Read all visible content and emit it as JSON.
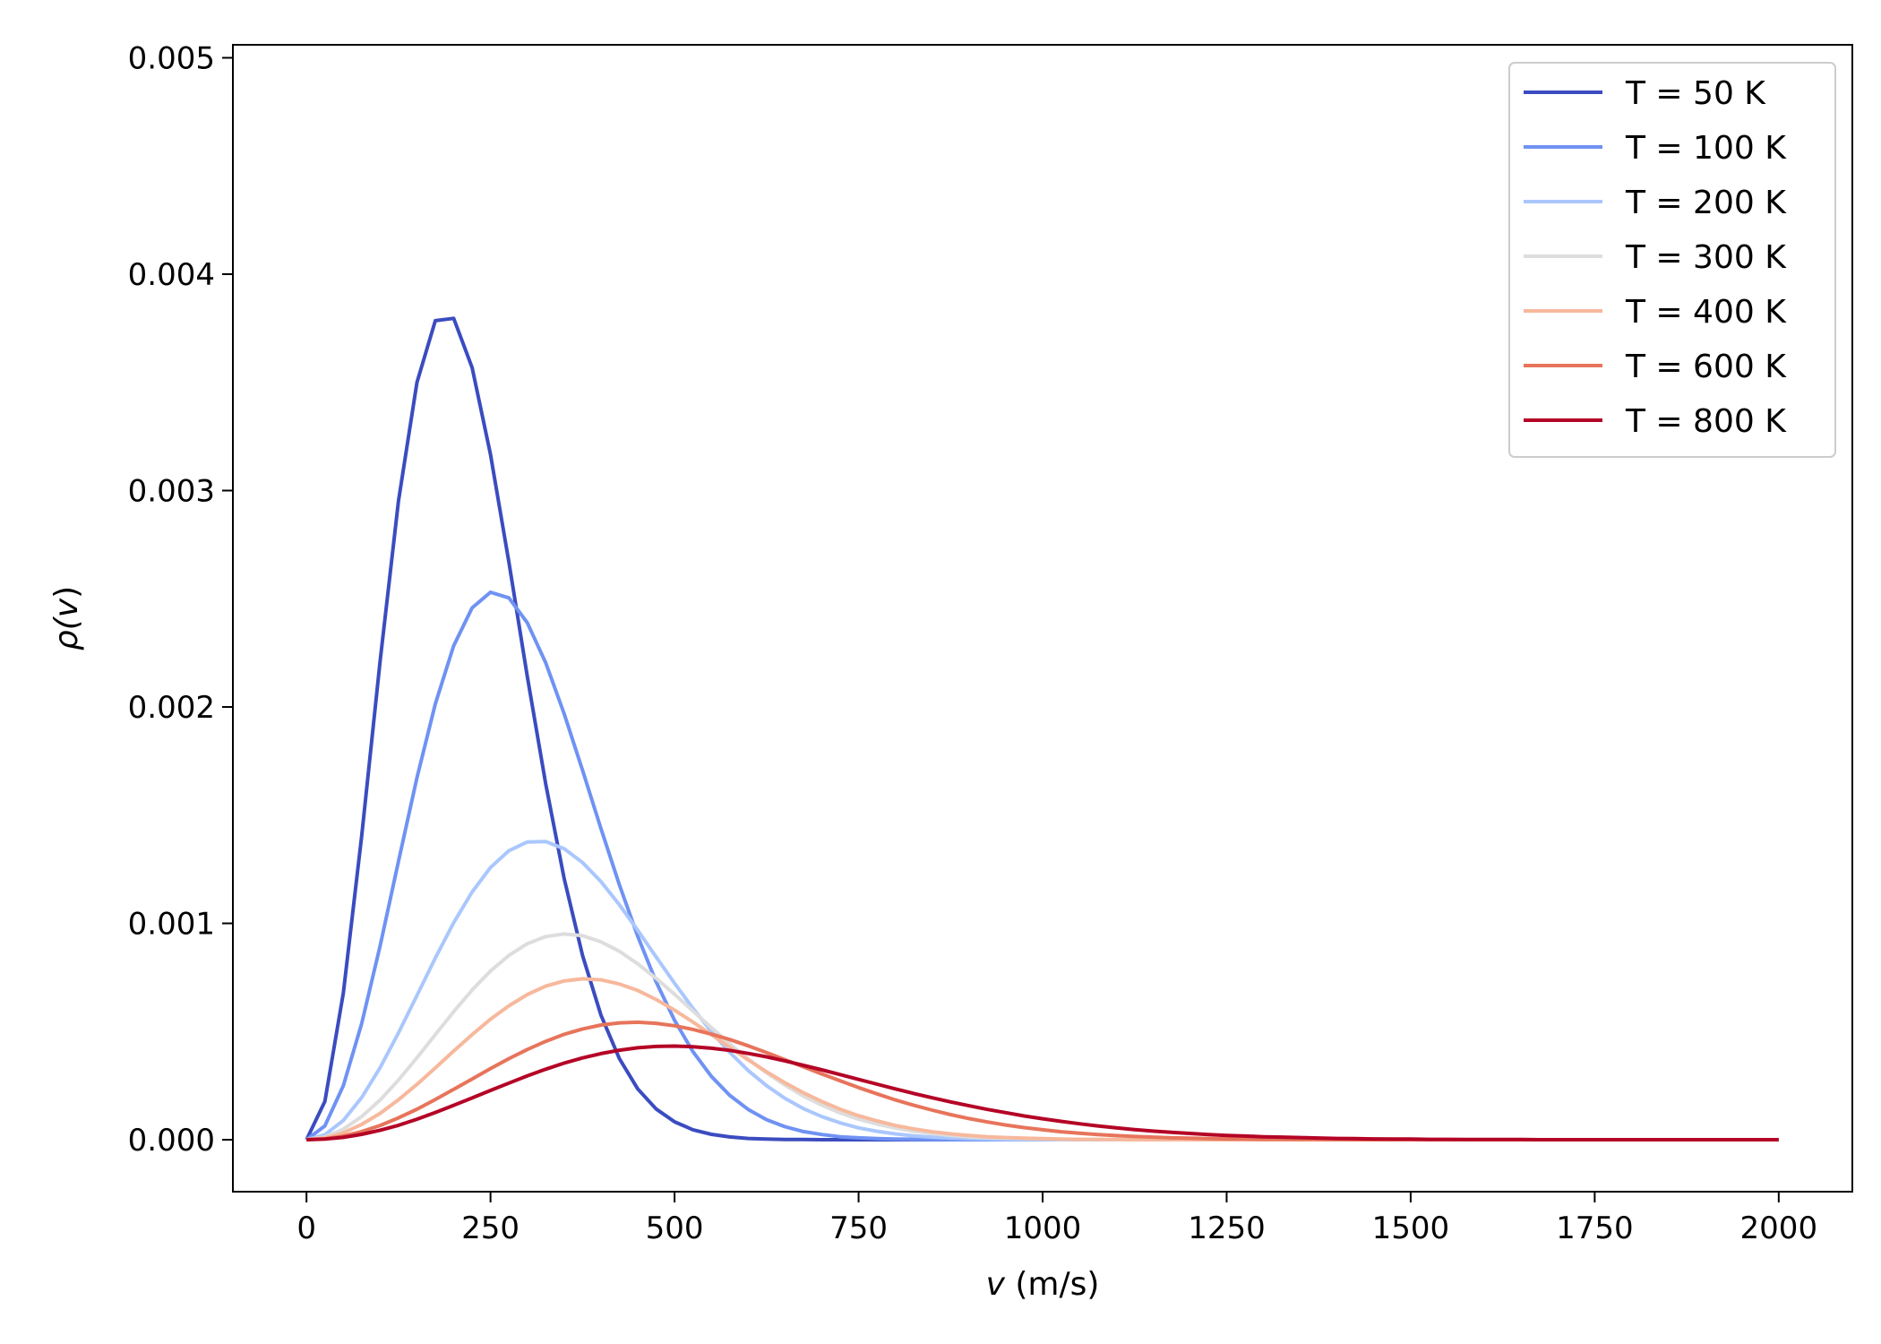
{
  "chart_data": {
    "type": "line",
    "title": "",
    "xlabel_var": "v",
    "xlabel_unit": " (m/s)",
    "ylabel_var": "ρ(",
    "ylabel_arg": "v",
    "ylabel_close": ")",
    "xlim": [
      -100,
      2100
    ],
    "ylim": [
      -0.00024,
      0.00506
    ],
    "x_ticks": [
      0,
      250,
      500,
      750,
      1000,
      1250,
      1500,
      1750,
      2000
    ],
    "x_tick_labels": [
      "0",
      "250",
      "500",
      "750",
      "1000",
      "1250",
      "1500",
      "1750",
      "2000"
    ],
    "y_ticks": [
      0,
      0.001,
      0.002,
      0.003,
      0.004,
      0.005
    ],
    "y_tick_labels": [
      "0.000",
      "0.001",
      "0.002",
      "0.003",
      "0.004",
      "0.005"
    ],
    "grid": false,
    "legend_position": "top-right",
    "x": [
      0,
      25,
      50,
      75,
      100,
      125,
      150,
      175,
      200,
      225,
      250,
      275,
      300,
      325,
      350,
      375,
      400,
      425,
      450,
      475,
      500,
      525,
      550,
      575,
      600,
      625,
      650,
      675,
      700,
      725,
      750,
      775,
      800,
      825,
      850,
      875,
      900,
      925,
      950,
      975,
      1000,
      1025,
      1050,
      1075,
      1100,
      1125,
      1150,
      1175,
      1200,
      1225,
      1250,
      1275,
      1300,
      1325,
      1350,
      1375,
      1400,
      1425,
      1450,
      1475,
      1500,
      1525,
      1550,
      1575,
      1600,
      1625,
      1650,
      1675,
      1700,
      1725,
      1750,
      1775,
      1800,
      1825,
      1850,
      1875,
      1900,
      1925,
      1950,
      1975,
      2000
    ],
    "series": [
      {
        "name": "T = 50 K",
        "color": "#3b4cc0",
        "values": [
          0,
          0.000177,
          0.000678,
          0.001404,
          0.002213,
          0.002953,
          0.0035,
          0.003785,
          0.003796,
          0.003568,
          0.003167,
          0.002668,
          0.002141,
          0.001643,
          0.001208,
          0.000851,
          0.000576,
          0.000375,
          0.000235,
          0.000142,
          8.3e-05,
          4.6e-05,
          2.5e-05,
          1.3e-05,
          6e-06,
          3e-06,
          1e-06,
          1e-06,
          0,
          0,
          0,
          0,
          0,
          0,
          0,
          0,
          0,
          0,
          0,
          0,
          0,
          0,
          0,
          0,
          0,
          0,
          0,
          0,
          0,
          0,
          0,
          0,
          0,
          0,
          0,
          0,
          0,
          0,
          0,
          0,
          0,
          0,
          0,
          0,
          0,
          0,
          0,
          0,
          0,
          0,
          0,
          0,
          0,
          0,
          0,
          0,
          0,
          0,
          0,
          0,
          0
        ]
      },
      {
        "name": "T = 100 K",
        "color": "#6f92f3",
        "values": [
          0,
          6.4e-05,
          0.00025,
          0.000537,
          0.000896,
          0.001287,
          0.001673,
          0.002014,
          0.002283,
          0.002458,
          0.00253,
          0.002504,
          0.002389,
          0.002204,
          0.001969,
          0.001707,
          0.001438,
          0.001178,
          0.00094,
          0.00073,
          0.000552,
          0.000407,
          0.000293,
          0.000205,
          0.00014,
          9.3e-05,
          6e-05,
          3.8e-05,
          2.4e-05,
          1.4e-05,
          9e-06,
          5e-06,
          3e-06,
          2e-06,
          1e-06,
          0,
          0,
          0,
          0,
          0,
          0,
          0,
          0,
          0,
          0,
          0,
          0,
          0,
          0,
          0,
          0,
          0,
          0,
          0,
          0,
          0,
          0,
          0,
          0,
          0,
          0,
          0,
          0,
          0,
          0,
          0,
          0,
          0,
          0,
          0,
          0,
          0,
          0,
          0,
          0,
          0,
          0,
          0,
          0,
          0,
          0
        ]
      },
      {
        "name": "T = 200 K",
        "color": "#aac7fd",
        "values": [
          0,
          2.3e-05,
          8.9e-05,
          0.000195,
          0.000333,
          0.000494,
          0.000667,
          0.00084,
          0.001003,
          0.001145,
          0.001258,
          0.001336,
          0.001376,
          0.001378,
          0.001345,
          0.001281,
          0.001193,
          0.001086,
          0.000968,
          0.000845,
          0.000723,
          0.000607,
          0.0005,
          0.000404,
          0.00032,
          0.00025,
          0.000191,
          0.000144,
          0.000107,
          7.8e-05,
          5.5e-05,
          3.9e-05,
          2.7e-05,
          1.8e-05,
          1.2e-05,
          8e-06,
          5e-06,
          3e-06,
          2e-06,
          1e-06,
          1e-06,
          0,
          0,
          0,
          0,
          0,
          0,
          0,
          0,
          0,
          0,
          0,
          0,
          0,
          0,
          0,
          0,
          0,
          0,
          0,
          0,
          0,
          0,
          0,
          0,
          0,
          0,
          0,
          0,
          0,
          0,
          0,
          0,
          0,
          0,
          0,
          0,
          0,
          0,
          0,
          0
        ]
      },
      {
        "name": "T = 300 K",
        "color": "#dddddd",
        "values": [
          0,
          1.2e-05,
          4.9e-05,
          0.000107,
          0.000184,
          0.000276,
          0.000379,
          0.000486,
          0.000592,
          0.000692,
          0.00078,
          0.000852,
          0.000906,
          0.000939,
          0.000951,
          0.000943,
          0.000915,
          0.000871,
          0.000813,
          0.000746,
          0.000672,
          0.000595,
          0.000518,
          0.000443,
          0.000373,
          0.000309,
          0.000252,
          0.000202,
          0.00016,
          0.000124,
          9.5e-05,
          7.2e-05,
          5.4e-05,
          3.9e-05,
          2.9e-05,
          2e-05,
          1.4e-05,
          1e-05,
          7e-06,
          5e-06,
          3e-06,
          2e-06,
          1e-06,
          1e-06,
          0,
          0,
          0,
          0,
          0,
          0,
          0,
          0,
          0,
          0,
          0,
          0,
          0,
          0,
          0,
          0,
          0,
          0,
          0,
          0,
          0,
          0,
          0,
          0,
          0,
          0,
          0,
          0,
          0,
          0,
          0,
          0,
          0,
          0,
          0,
          0,
          0
        ]
      },
      {
        "name": "T = 400 K",
        "color": "#f7b89c",
        "values": [
          0,
          8e-06,
          3.2e-05,
          7.1e-05,
          0.000122,
          0.000185,
          0.000256,
          0.000332,
          0.00041,
          0.000486,
          0.000557,
          0.000619,
          0.000671,
          0.00071,
          0.000734,
          0.000744,
          0.000739,
          0.00072,
          0.00069,
          0.000648,
          0.000599,
          0.000544,
          0.000486,
          0.000427,
          0.000369,
          0.000314,
          0.000263,
          0.000217,
          0.000177,
          0.000141,
          0.000111,
          8.7e-05,
          6.6e-05,
          5e-05,
          3.7e-05,
          2.7e-05,
          2e-05,
          1.4e-05,
          1e-05,
          7e-06,
          5e-06,
          3e-06,
          2e-06,
          1e-06,
          1e-06,
          0,
          0,
          0,
          0,
          0,
          0,
          0,
          0,
          0,
          0,
          0,
          0,
          0,
          0,
          0,
          0,
          0,
          0,
          0,
          0,
          0,
          0,
          0,
          0,
          0,
          0,
          0,
          0,
          0,
          0,
          0,
          0,
          0,
          0,
          0,
          0
        ]
      },
      {
        "name": "T = 600 K",
        "color": "#e7745b",
        "values": [
          0,
          4e-06,
          1.7e-05,
          3.8e-05,
          6.6e-05,
          0.000101,
          0.000141,
          0.000186,
          0.000233,
          0.000281,
          0.000329,
          0.000375,
          0.000417,
          0.000455,
          0.000487,
          0.000512,
          0.00053,
          0.00054,
          0.000543,
          0.000538,
          0.000527,
          0.00051,
          0.000488,
          0.000463,
          0.000434,
          0.000403,
          0.00037,
          0.000337,
          0.000304,
          0.000272,
          0.000241,
          0.000212,
          0.000184,
          0.000159,
          0.000137,
          0.000116,
          9.8e-05,
          8.2e-05,
          6.8e-05,
          5.6e-05,
          4.6e-05,
          3.7e-05,
          3e-05,
          2.4e-05,
          1.9e-05,
          1.5e-05,
          1.2e-05,
          9e-06,
          7e-06,
          5e-06,
          4e-06,
          3e-06,
          2e-06,
          2e-06,
          1e-06,
          1e-06,
          1e-06,
          0,
          0,
          0,
          0,
          0,
          0,
          0,
          0,
          0,
          0,
          0,
          0,
          0,
          0,
          0,
          0,
          0,
          0,
          0,
          0,
          0,
          0,
          0,
          0
        ]
      },
      {
        "name": "T = 800 K",
        "color": "#b40426",
        "values": [
          0,
          3e-06,
          1.1e-05,
          2.5e-05,
          4.4e-05,
          6.7e-05,
          9.5e-05,
          0.000126,
          0.000159,
          0.000193,
          0.000228,
          0.000262,
          0.000295,
          0.000326,
          0.000354,
          0.000378,
          0.000398,
          0.000414,
          0.000425,
          0.000431,
          0.000433,
          0.00043,
          0.000423,
          0.000413,
          0.000399,
          0.000383,
          0.000364,
          0.000344,
          0.000323,
          0.000301,
          0.000279,
          0.000257,
          0.000235,
          0.000214,
          0.000194,
          0.000175,
          0.000157,
          0.00014,
          0.000125,
          0.00011,
          9.7e-05,
          8.5e-05,
          7.4e-05,
          6.4e-05,
          5.5e-05,
          4.7e-05,
          4e-05,
          3.4e-05,
          2.9e-05,
          2.4e-05,
          2e-05,
          1.7e-05,
          1.4e-05,
          1.2e-05,
          1e-05,
          8e-06,
          6e-06,
          5e-06,
          4e-06,
          3e-06,
          3e-06,
          2e-06,
          2e-06,
          1e-06,
          1e-06,
          1e-06,
          1e-06,
          0,
          0,
          0,
          0,
          0,
          0,
          0,
          0,
          0,
          0,
          0,
          0,
          0,
          0
        ]
      }
    ]
  }
}
